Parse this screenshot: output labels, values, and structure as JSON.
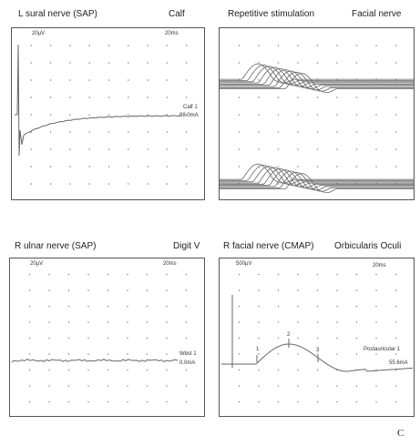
{
  "panels": [
    {
      "id": "sural",
      "title_left": "L sural nerve (SAP)",
      "title_right": "Calf",
      "scale_amp": "20µV",
      "scale_time": "20ms",
      "trace_label_1": "Calf 1",
      "trace_label_2": "88.0mA"
    },
    {
      "id": "repetitive",
      "title_left": "Repetitive stimulation",
      "title_right": "Facial nerve"
    },
    {
      "id": "ulnar",
      "title_left": "R ulnar nerve (SAP)",
      "title_right": "Digit V",
      "scale_amp": "20µV",
      "scale_time": "20ms",
      "trace_label_1": "Wrist 1",
      "trace_label_2": "0.0mA"
    },
    {
      "id": "facial",
      "title_left": "R facial nerve (CMAP)",
      "title_right": "Orbicularis Oculi",
      "scale_amp": "500µV",
      "scale_time": "20ms",
      "trace_label_1": "Postauricular 1",
      "trace_label_2": "55.6mA",
      "markers": [
        "1",
        "2",
        "3"
      ]
    }
  ],
  "corner_label": "C",
  "colors": {
    "trace": "#666666",
    "frame": "#555555",
    "grid_dot": "#888888"
  }
}
